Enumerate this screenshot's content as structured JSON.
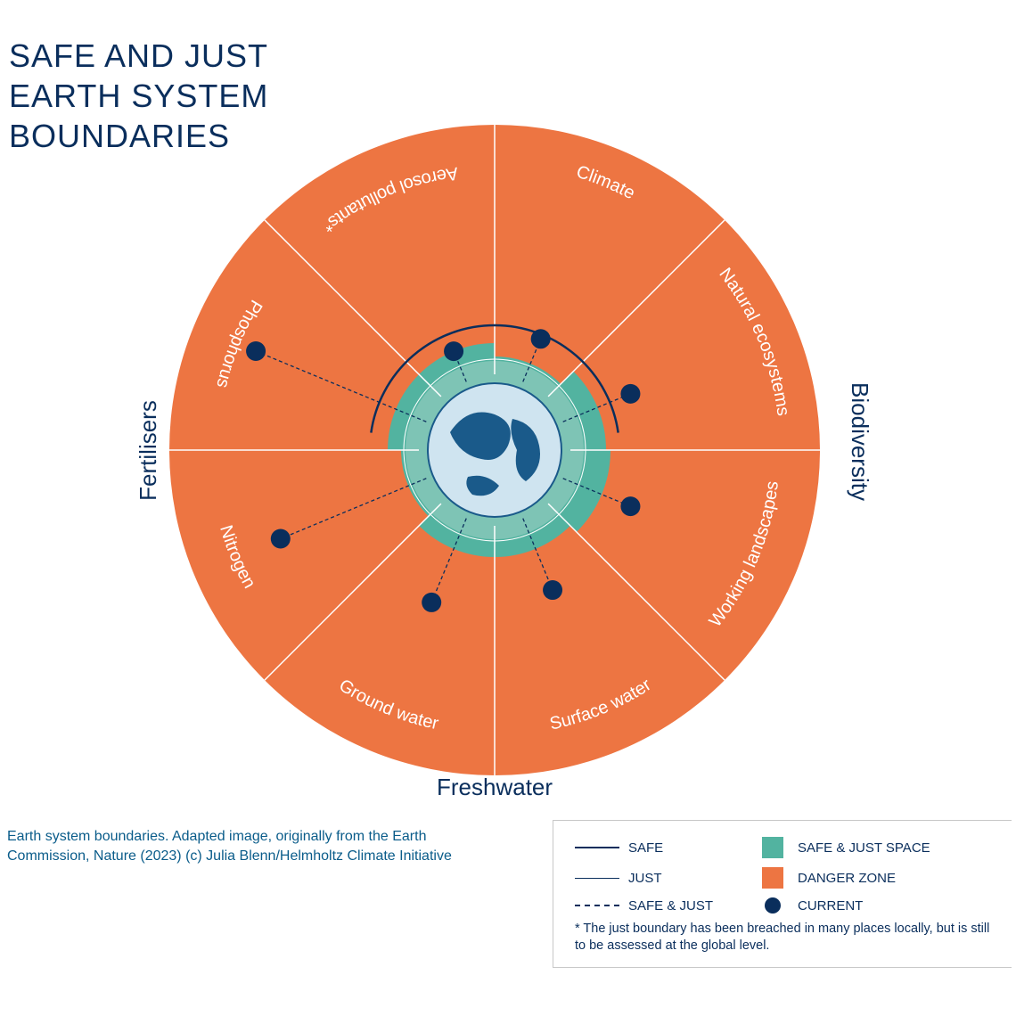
{
  "title_line1": "SAFE AND JUST",
  "title_line2": "EARTH SYSTEM",
  "title_line3": "BOUNDARIES",
  "credit": "Earth system boundaries. Adapted image, originally from the Earth Commission, Nature (2023) (c) Julia Blenn/Helmholtz Climate Initiative",
  "colors": {
    "danger": "#ed7542",
    "safe_just": "#52b3a0",
    "safe_just_light": "#7ec4b5",
    "navy": "#0a2e5c",
    "white": "#ffffff",
    "divider": "#ffffff",
    "earth_ocean": "#cfe4f0",
    "earth_land": "#1a5a8a"
  },
  "diagram": {
    "outer_radius": 365,
    "earth_radius": 75,
    "safe_radius_outer": 135,
    "safe_radius_inner": 100,
    "sectors": [
      {
        "label": "Climate",
        "angle_start": -90,
        "angle_end": -45,
        "current_r": 135,
        "safe_r": 105
      },
      {
        "label": "Natural ecosystems",
        "angle_start": -45,
        "angle_end": 0,
        "current_r": 165,
        "safe_r": 125
      },
      {
        "label": "Working landscapes",
        "angle_start": 0,
        "angle_end": 45,
        "current_r": 165,
        "safe_r": 130
      },
      {
        "label": "Surface water",
        "angle_start": 45,
        "angle_end": 90,
        "current_r": 170,
        "safe_r": 120
      },
      {
        "label": "Ground water",
        "angle_start": 90,
        "angle_end": 135,
        "current_r": 185,
        "safe_r": 120
      },
      {
        "label": "Nitrogen",
        "angle_start": 135,
        "angle_end": 180,
        "current_r": 260,
        "safe_r": 105
      },
      {
        "label": "Phosphorus",
        "angle_start": 180,
        "angle_end": 225,
        "current_r": 290,
        "safe_r": 120
      },
      {
        "label": "Aerosol pollutants*",
        "angle_start": 225,
        "angle_end": 270,
        "current_r": 120,
        "safe_r": 120
      }
    ],
    "outer_groups": [
      {
        "label": "Biodiversity",
        "side": "right"
      },
      {
        "label": "Freshwater",
        "side": "bottom"
      },
      {
        "label": "Fertilisers",
        "side": "left"
      }
    ],
    "safe_arc_start_deg": 188,
    "safe_arc_end_deg": 352
  },
  "legend": {
    "safe": "SAFE",
    "just": "JUST",
    "safe_and_just": "SAFE & JUST",
    "safe_just_space": "SAFE & JUST SPACE",
    "danger_zone": "DANGER ZONE",
    "current": "CURRENT",
    "note": "* The just boundary has been breached in many places locally, but is still to be assessed at the global level."
  }
}
